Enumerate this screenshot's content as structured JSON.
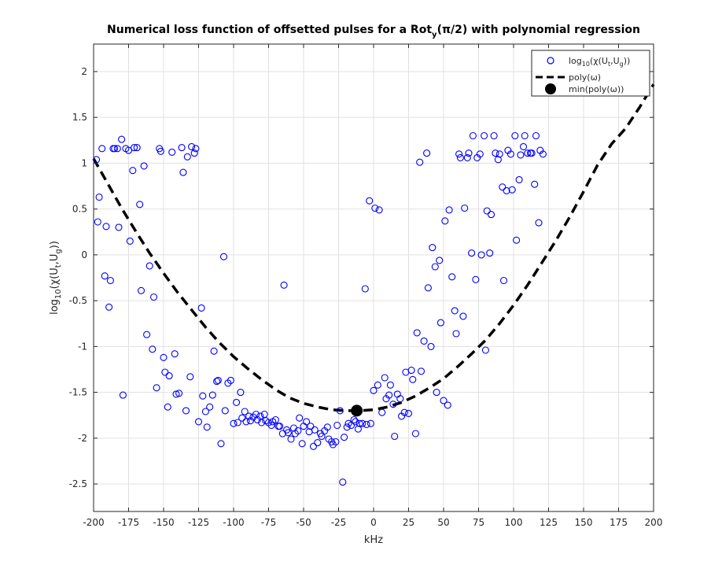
{
  "chart_data": {
    "type": "scatter",
    "title": {
      "prefix": "Numerical loss function of offsetted pulses for a Rot",
      "sub": "y",
      "suffix": "(π/2) with polynomial regression"
    },
    "xlabel": "kHz",
    "ylabel": {
      "p1": "log",
      "s1": "10",
      "p2": "(χ(U",
      "s2": "t",
      "p3": ",U",
      "s3": "g",
      "p4": "))"
    },
    "xlim": [
      -200,
      200
    ],
    "ylim": [
      -2.8,
      2.3
    ],
    "xticks": [
      -200,
      -175,
      -150,
      -125,
      -100,
      -75,
      -50,
      -25,
      0,
      25,
      50,
      75,
      100,
      125,
      150,
      175,
      200
    ],
    "yticks": [
      -2.5,
      -2,
      -1.5,
      -1,
      -0.5,
      0,
      0.5,
      1,
      1.5,
      2
    ],
    "grid": true,
    "legend_position": "top-right",
    "legend": [
      {
        "name": {
          "p1": "log",
          "s1": "10",
          "p2": "(χ(U",
          "s2": "t",
          "p3": ",U",
          "s3": "g",
          "p4": "))"
        },
        "style": "circle-marker"
      },
      {
        "name": "poly(ω)",
        "style": "dashed-line"
      },
      {
        "name": "min(poly(ω))",
        "style": "filled-dot"
      }
    ],
    "colors": {
      "scatter": "#0000ff",
      "poly": "#000000",
      "min": "#000000",
      "grid": "#e0e0e0"
    },
    "series": [
      {
        "name": "log10(χ(Ut,Ug))",
        "kind": "scatter",
        "points": [
          [
            -198,
            1.04
          ],
          [
            -197,
            0.36
          ],
          [
            -196,
            0.63
          ],
          [
            -194,
            1.16
          ],
          [
            -192,
            -0.23
          ],
          [
            -191,
            0.31
          ],
          [
            -189,
            -0.57
          ],
          [
            -188,
            -0.28
          ],
          [
            -186,
            1.16
          ],
          [
            -185,
            1.16
          ],
          [
            -183,
            1.16
          ],
          [
            -182,
            0.3
          ],
          [
            -180,
            1.26
          ],
          [
            -179,
            -1.53
          ],
          [
            -177,
            1.16
          ],
          [
            -175,
            1.14
          ],
          [
            -174,
            0.15
          ],
          [
            -172,
            0.92
          ],
          [
            -171,
            1.17
          ],
          [
            -169,
            1.17
          ],
          [
            -167,
            0.55
          ],
          [
            -166,
            -0.39
          ],
          [
            -164,
            0.97
          ],
          [
            -162,
            -0.87
          ],
          [
            -160,
            -0.12
          ],
          [
            -158,
            -1.03
          ],
          [
            -157,
            -0.46
          ],
          [
            -155,
            -1.45
          ],
          [
            -153,
            1.16
          ],
          [
            -152,
            1.13
          ],
          [
            -150,
            -1.12
          ],
          [
            -149,
            -1.28
          ],
          [
            -147,
            -1.66
          ],
          [
            -146,
            -1.32
          ],
          [
            -144,
            1.12
          ],
          [
            -142,
            -1.08
          ],
          [
            -141,
            -1.52
          ],
          [
            -139,
            -1.51
          ],
          [
            -137,
            1.17
          ],
          [
            -136,
            0.9
          ],
          [
            -134,
            -1.7
          ],
          [
            -133,
            1.07
          ],
          [
            -131,
            -1.33
          ],
          [
            -130,
            1.18
          ],
          [
            -128,
            1.11
          ],
          [
            -127,
            1.16
          ],
          [
            -125,
            -1.82
          ],
          [
            -123,
            -0.58
          ],
          [
            -122,
            -1.54
          ],
          [
            -120,
            -1.71
          ],
          [
            -119,
            -1.88
          ],
          [
            -117,
            -1.66
          ],
          [
            -115,
            -1.53
          ],
          [
            -114,
            -1.05
          ],
          [
            -112,
            -1.38
          ],
          [
            -111,
            -1.37
          ],
          [
            -109,
            -2.06
          ],
          [
            -107,
            -0.02
          ],
          [
            -106,
            -1.7
          ],
          [
            -104,
            -1.4
          ],
          [
            -102,
            -1.37
          ],
          [
            -100,
            -1.84
          ],
          [
            -98,
            -1.61
          ],
          [
            -97,
            -1.83
          ],
          [
            -95,
            -1.5
          ],
          [
            -94,
            -1.78
          ],
          [
            -92,
            -1.71
          ],
          [
            -91,
            -1.82
          ],
          [
            -89,
            -1.76
          ],
          [
            -88,
            -1.81
          ],
          [
            -86,
            -1.77
          ],
          [
            -84,
            -1.74
          ],
          [
            -83,
            -1.8
          ],
          [
            -81,
            -1.76
          ],
          [
            -80,
            -1.83
          ],
          [
            -78,
            -1.74
          ],
          [
            -77,
            -1.81
          ],
          [
            -75,
            -1.83
          ],
          [
            -73,
            -1.86
          ],
          [
            -72,
            -1.82
          ],
          [
            -70,
            -1.8
          ],
          [
            -68,
            -1.87
          ],
          [
            -67,
            -1.87
          ],
          [
            -65,
            -1.95
          ],
          [
            -64,
            -0.33
          ],
          [
            -62,
            -1.91
          ],
          [
            -61,
            -1.94
          ],
          [
            -59,
            -2.01
          ],
          [
            -57,
            -1.89
          ],
          [
            -56,
            -1.95
          ],
          [
            -54,
            -1.92
          ],
          [
            -53,
            -1.78
          ],
          [
            -51,
            -2.06
          ],
          [
            -50,
            -1.87
          ],
          [
            -48,
            -1.82
          ],
          [
            -46,
            -1.93
          ],
          [
            -45,
            -1.87
          ],
          [
            -43,
            -2.09
          ],
          [
            -42,
            -1.91
          ],
          [
            -40,
            -2.05
          ],
          [
            -38,
            -1.95
          ],
          [
            -37,
            -1.98
          ],
          [
            -35,
            -1.92
          ],
          [
            -33,
            -1.88
          ],
          [
            -32,
            -2.01
          ],
          [
            -30,
            -2.04
          ],
          [
            -29,
            -2.07
          ],
          [
            -27,
            -2.04
          ],
          [
            -26,
            -1.86
          ],
          [
            -24,
            -1.7
          ],
          [
            -22,
            -2.48
          ],
          [
            -21,
            -1.99
          ],
          [
            -19,
            -1.88
          ],
          [
            -18,
            -1.84
          ],
          [
            -16,
            -1.86
          ],
          [
            -14,
            -1.8
          ],
          [
            -13,
            -1.82
          ],
          [
            -11,
            -1.9
          ],
          [
            -10,
            -1.84
          ],
          [
            -8,
            -1.84
          ],
          [
            -6,
            -0.37
          ],
          [
            -5,
            -1.85
          ],
          [
            -3,
            0.59
          ],
          [
            -2,
            -1.84
          ],
          [
            0,
            -1.48
          ],
          [
            1,
            0.51
          ],
          [
            3,
            -1.42
          ],
          [
            4,
            0.49
          ],
          [
            6,
            -1.72
          ],
          [
            8,
            -1.34
          ],
          [
            9,
            -1.57
          ],
          [
            11,
            -1.53
          ],
          [
            12,
            -1.42
          ],
          [
            14,
            -1.63
          ],
          [
            15,
            -1.98
          ],
          [
            17,
            -1.52
          ],
          [
            19,
            -1.57
          ],
          [
            20,
            -1.76
          ],
          [
            22,
            -1.72
          ],
          [
            23,
            -1.28
          ],
          [
            25,
            -1.73
          ],
          [
            27,
            -1.26
          ],
          [
            28,
            -1.36
          ],
          [
            30,
            -1.95
          ],
          [
            31,
            -0.85
          ],
          [
            33,
            1.01
          ],
          [
            34,
            -1.27
          ],
          [
            36,
            -0.94
          ],
          [
            38,
            1.11
          ],
          [
            39,
            -0.36
          ],
          [
            41,
            -1.0
          ],
          [
            42,
            0.08
          ],
          [
            44,
            -0.13
          ],
          [
            45,
            -1.5
          ],
          [
            47,
            -0.06
          ],
          [
            48,
            -0.74
          ],
          [
            50,
            -1.59
          ],
          [
            51,
            0.37
          ],
          [
            53,
            -1.64
          ],
          [
            54,
            0.49
          ],
          [
            56,
            -0.24
          ],
          [
            58,
            -0.61
          ],
          [
            59,
            -0.86
          ],
          [
            61,
            1.1
          ],
          [
            62,
            1.06
          ],
          [
            64,
            -0.67
          ],
          [
            65,
            0.51
          ],
          [
            67,
            1.06
          ],
          [
            68,
            1.11
          ],
          [
            70,
            0.02
          ],
          [
            71,
            1.3
          ],
          [
            73,
            -0.27
          ],
          [
            74,
            1.06
          ],
          [
            76,
            1.1
          ],
          [
            77,
            0.0
          ],
          [
            79,
            1.3
          ],
          [
            80,
            -1.04
          ],
          [
            81,
            0.48
          ],
          [
            83,
            0.02
          ],
          [
            84,
            0.44
          ],
          [
            86,
            1.3
          ],
          [
            87,
            1.11
          ],
          [
            89,
            1.04
          ],
          [
            90,
            1.1
          ],
          [
            92,
            0.74
          ],
          [
            93,
            -0.28
          ],
          [
            95,
            0.7
          ],
          [
            96,
            1.14
          ],
          [
            98,
            1.1
          ],
          [
            99,
            0.71
          ],
          [
            101,
            1.3
          ],
          [
            102,
            0.16
          ],
          [
            104,
            0.82
          ],
          [
            105,
            1.09
          ],
          [
            107,
            1.18
          ],
          [
            108,
            1.3
          ],
          [
            110,
            1.11
          ],
          [
            112,
            1.11
          ],
          [
            113,
            1.11
          ],
          [
            115,
            0.77
          ],
          [
            116,
            1.3
          ],
          [
            118,
            0.35
          ],
          [
            119,
            1.14
          ],
          [
            121,
            1.1
          ]
        ]
      },
      {
        "name": "poly(ω)",
        "kind": "line",
        "x": [
          -200,
          -190,
          -180,
          -170,
          -160,
          -150,
          -140,
          -130,
          -120,
          -110,
          -100,
          -90,
          -80,
          -70,
          -60,
          -50,
          -40,
          -30,
          -20,
          -10,
          0,
          10,
          20,
          30,
          40,
          50,
          60,
          70,
          80,
          90,
          100,
          110,
          120,
          130,
          140,
          150,
          160,
          170,
          180,
          190,
          200
        ],
        "y": [
          1.05,
          0.78,
          0.51,
          0.26,
          0.02,
          -0.2,
          -0.41,
          -0.6,
          -0.79,
          -0.96,
          -1.11,
          -1.24,
          -1.36,
          -1.47,
          -1.56,
          -1.62,
          -1.66,
          -1.69,
          -1.7,
          -1.7,
          -1.69,
          -1.66,
          -1.61,
          -1.54,
          -1.45,
          -1.35,
          -1.22,
          -1.08,
          -0.93,
          -0.75,
          -0.55,
          -0.33,
          -0.09,
          0.15,
          0.41,
          0.69,
          0.98,
          1.21,
          1.38,
          1.61,
          1.86
        ]
      },
      {
        "name": "min(poly(ω))",
        "kind": "point",
        "x": -12,
        "y": -1.7
      }
    ]
  }
}
